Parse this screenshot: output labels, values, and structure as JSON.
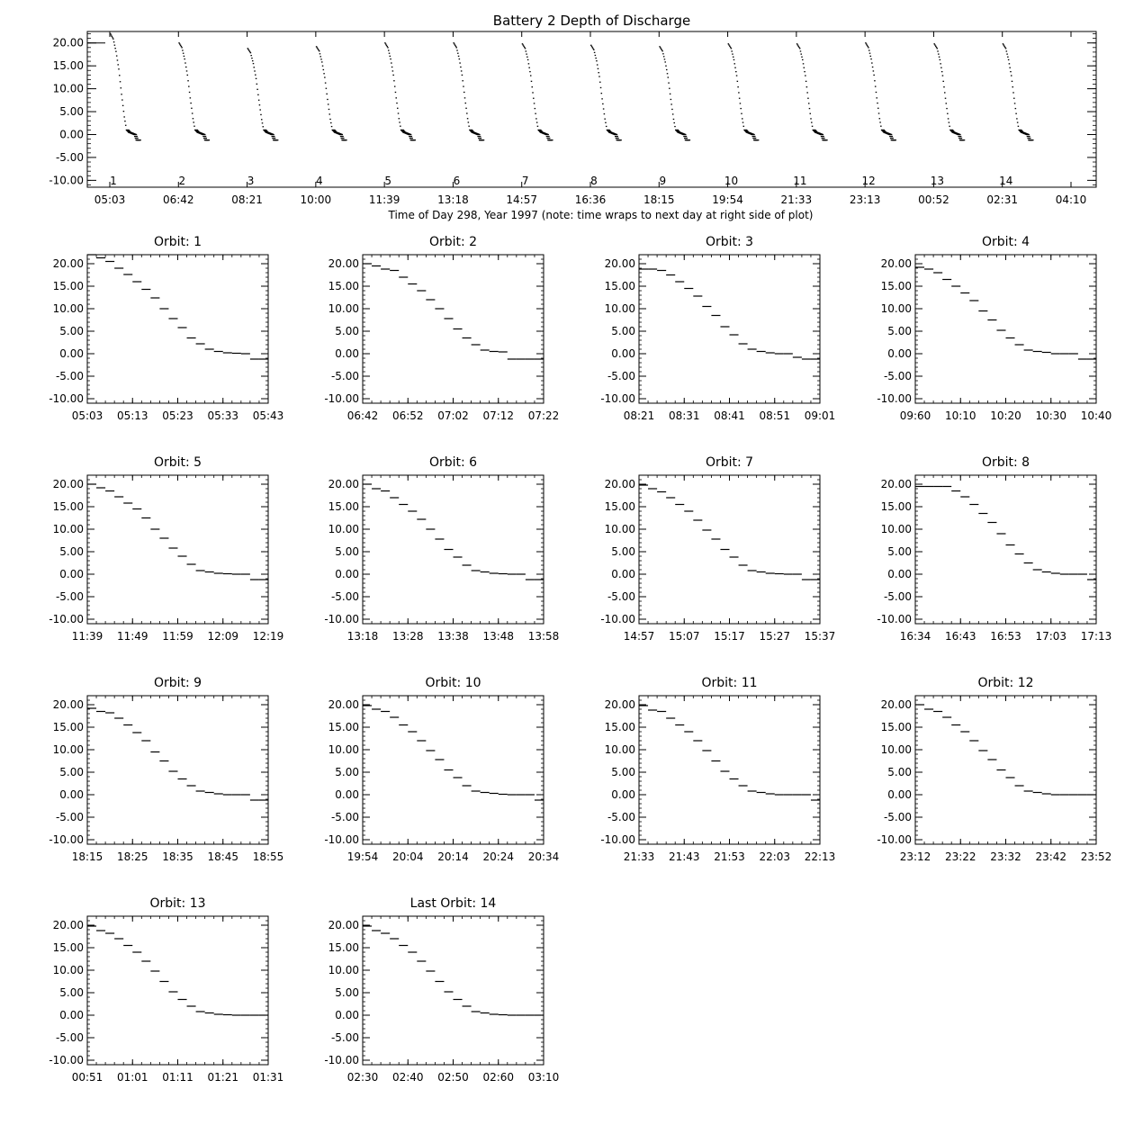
{
  "chart_data": [
    {
      "type": "scatter",
      "title": "Battery 2 Depth of Discharge",
      "xlabel": "Time of Day 298, Year 1997 (note: time wraps to next day at right side of plot)",
      "ylabel": "",
      "x_tick_labels": [
        "05:03",
        "06:42",
        "08:21",
        "10:00",
        "11:39",
        "13:18",
        "14:57",
        "16:36",
        "18:15",
        "19:54",
        "21:33",
        "23:13",
        "00:52",
        "02:31",
        "04:10"
      ],
      "y_ticks": [
        20.0,
        15.0,
        10.0,
        5.0,
        0.0,
        -5.0,
        -10.0
      ],
      "y_tick_labels": [
        "20.00",
        "15.00",
        "10.00",
        "5.00",
        "0.00",
        "-5.00",
        "-10.00"
      ],
      "ylim": [
        -11.5,
        22.5
      ],
      "orbit_markers": [
        "1",
        "2",
        "3",
        "4",
        "5",
        "6",
        "7",
        "8",
        "9",
        "10",
        "11",
        "12",
        "13",
        "14"
      ],
      "orbit_start_values": [
        22.0,
        20.0,
        18.8,
        19.2,
        20.0,
        20.0,
        19.8,
        19.5,
        19.2,
        19.8,
        19.8,
        20.0,
        19.8,
        19.8
      ],
      "series": [
        {
          "values_per_orbit_minutes": [
            0,
            40
          ],
          "profile": [
            [
              0,
              20.0
            ],
            [
              4,
              19.0
            ],
            [
              8,
              16.5
            ],
            [
              12,
              13.0
            ],
            [
              16,
              8.0
            ],
            [
              20,
              3.5
            ],
            [
              23,
              1.0
            ],
            [
              26,
              0.5
            ],
            [
              34,
              0.0
            ],
            [
              37,
              -1.2
            ],
            [
              40,
              -1.2
            ]
          ]
        }
      ]
    },
    {
      "type": "scatter",
      "title": "Orbit: 1",
      "x_tick_labels": [
        "05:03",
        "05:13",
        "05:23",
        "05:33",
        "05:43"
      ],
      "y_tick_labels": [
        "20.00",
        "15.00",
        "10.00",
        "5.00",
        "0.00",
        "-5.00",
        "-10.00"
      ],
      "ylim": [
        -11,
        22
      ],
      "x": [
        0,
        2,
        4,
        6,
        8,
        10,
        12,
        14,
        16,
        18,
        20,
        22,
        24,
        26,
        28,
        30,
        32,
        34,
        36,
        38,
        40
      ],
      "y": [
        22.0,
        21.3,
        20.5,
        19.0,
        17.6,
        16.0,
        14.3,
        12.4,
        10.0,
        7.8,
        5.8,
        3.5,
        2.2,
        1.0,
        0.5,
        0.2,
        0.1,
        0.0,
        -1.2,
        -1.2,
        -1.2
      ]
    },
    {
      "type": "scatter",
      "title": "Orbit: 2",
      "x_tick_labels": [
        "06:42",
        "06:52",
        "07:02",
        "07:12",
        "07:22"
      ],
      "y_tick_labels": [
        "20.00",
        "15.00",
        "10.00",
        "5.00",
        "0.00",
        "-5.00",
        "-10.00"
      ],
      "ylim": [
        -11,
        22
      ],
      "x": [
        0,
        2,
        4,
        6,
        8,
        10,
        12,
        14,
        16,
        18,
        20,
        22,
        24,
        26,
        28,
        30,
        32,
        34,
        36,
        38,
        40
      ],
      "y": [
        20.0,
        19.5,
        18.8,
        18.5,
        17.0,
        15.5,
        14.0,
        12.0,
        10.0,
        7.8,
        5.5,
        3.5,
        2.0,
        0.8,
        0.5,
        0.4,
        -1.2,
        -1.2,
        -1.2,
        -1.2,
        -1.2
      ]
    },
    {
      "type": "scatter",
      "title": "Orbit: 3",
      "x_tick_labels": [
        "08:21",
        "08:31",
        "08:41",
        "08:51",
        "09:01"
      ],
      "y_tick_labels": [
        "20.00",
        "15.00",
        "10.00",
        "5.00",
        "0.00",
        "-5.00",
        "-10.00"
      ],
      "ylim": [
        -11,
        22
      ],
      "x": [
        0,
        2,
        4,
        6,
        8,
        10,
        12,
        14,
        16,
        18,
        20,
        22,
        24,
        26,
        28,
        30,
        32,
        34,
        36,
        38,
        40
      ],
      "y": [
        18.8,
        18.8,
        18.5,
        17.5,
        16.0,
        14.5,
        12.8,
        10.5,
        8.5,
        6.0,
        4.2,
        2.2,
        1.0,
        0.5,
        0.2,
        0.0,
        0.0,
        -0.8,
        -1.2,
        -1.2,
        -1.2
      ]
    },
    {
      "type": "scatter",
      "title": "Orbit: 4",
      "x_tick_labels": [
        "09:60",
        "10:10",
        "10:20",
        "10:30",
        "10:40"
      ],
      "y_tick_labels": [
        "20.00",
        "15.00",
        "10.00",
        "5.00",
        "0.00",
        "-5.00",
        "-10.00"
      ],
      "ylim": [
        -11,
        22
      ],
      "x": [
        0,
        2,
        4,
        6,
        8,
        10,
        12,
        14,
        16,
        18,
        20,
        22,
        24,
        26,
        28,
        30,
        32,
        34,
        36,
        38,
        40
      ],
      "y": [
        19.2,
        18.8,
        18.0,
        16.5,
        15.0,
        13.5,
        11.8,
        9.5,
        7.5,
        5.2,
        3.5,
        2.0,
        0.8,
        0.5,
        0.3,
        0.0,
        0.0,
        0.0,
        -1.2,
        -1.2,
        -1.2
      ]
    },
    {
      "type": "scatter",
      "title": "Orbit: 5",
      "x_tick_labels": [
        "11:39",
        "11:49",
        "11:59",
        "12:09",
        "12:19"
      ],
      "y_tick_labels": [
        "20.00",
        "15.00",
        "10.00",
        "5.00",
        "0.00",
        "-5.00",
        "-10.00"
      ],
      "ylim": [
        -11,
        22
      ],
      "x": [
        0,
        2,
        4,
        6,
        8,
        10,
        12,
        14,
        16,
        18,
        20,
        22,
        24,
        26,
        28,
        30,
        32,
        34,
        36,
        38,
        40
      ],
      "y": [
        20.0,
        19.2,
        18.5,
        17.2,
        15.8,
        14.5,
        12.5,
        10.0,
        8.0,
        5.8,
        4.0,
        2.2,
        0.8,
        0.5,
        0.2,
        0.1,
        0.0,
        0.0,
        -1.2,
        -1.2,
        -1.2
      ]
    },
    {
      "type": "scatter",
      "title": "Orbit: 6",
      "x_tick_labels": [
        "13:18",
        "13:28",
        "13:38",
        "13:48",
        "13:58"
      ],
      "y_tick_labels": [
        "20.00",
        "15.00",
        "10.00",
        "5.00",
        "0.00",
        "-5.00",
        "-10.00"
      ],
      "ylim": [
        -11,
        22
      ],
      "x": [
        0,
        2,
        4,
        6,
        8,
        10,
        12,
        14,
        16,
        18,
        20,
        22,
        24,
        26,
        28,
        30,
        32,
        34,
        36,
        38,
        40
      ],
      "y": [
        20.0,
        19.0,
        18.5,
        17.0,
        15.5,
        14.0,
        12.2,
        10.0,
        7.8,
        5.5,
        3.8,
        2.0,
        0.8,
        0.5,
        0.2,
        0.1,
        0.0,
        0.0,
        -1.2,
        -1.2,
        -1.2
      ]
    },
    {
      "type": "scatter",
      "title": "Orbit: 7",
      "x_tick_labels": [
        "14:57",
        "15:07",
        "15:17",
        "15:27",
        "15:37"
      ],
      "y_tick_labels": [
        "20.00",
        "15.00",
        "10.00",
        "5.00",
        "0.00",
        "-5.00",
        "-10.00"
      ],
      "ylim": [
        -11,
        22
      ],
      "x": [
        0,
        2,
        4,
        6,
        8,
        10,
        12,
        14,
        16,
        18,
        20,
        22,
        24,
        26,
        28,
        30,
        32,
        34,
        36,
        38,
        40
      ],
      "y": [
        19.8,
        19.0,
        18.3,
        17.0,
        15.5,
        14.0,
        12.0,
        9.8,
        7.8,
        5.5,
        3.8,
        2.0,
        0.8,
        0.5,
        0.2,
        0.1,
        0.0,
        0.0,
        -1.2,
        -1.2,
        -1.2
      ]
    },
    {
      "type": "scatter",
      "title": "Orbit: 8",
      "x_tick_labels": [
        "16:34",
        "16:43",
        "16:53",
        "17:03",
        "17:13"
      ],
      "y_tick_labels": [
        "20.00",
        "15.00",
        "10.00",
        "5.00",
        "0.00",
        "-5.00",
        "-10.00"
      ],
      "ylim": [
        -11,
        22
      ],
      "x": [
        0,
        2,
        4,
        6,
        8,
        10,
        12,
        14,
        16,
        18,
        20,
        22,
        24,
        26,
        28,
        30,
        32,
        34,
        36,
        38,
        40
      ],
      "y": [
        19.5,
        19.5,
        19.5,
        19.5,
        18.5,
        17.2,
        15.5,
        13.5,
        11.5,
        9.0,
        6.5,
        4.5,
        2.5,
        1.0,
        0.5,
        0.2,
        0.0,
        0.0,
        0.0,
        -1.2,
        -1.2
      ]
    },
    {
      "type": "scatter",
      "title": "Orbit: 9",
      "x_tick_labels": [
        "18:15",
        "18:25",
        "18:35",
        "18:45",
        "18:55"
      ],
      "y_tick_labels": [
        "20.00",
        "15.00",
        "10.00",
        "5.00",
        "0.00",
        "-5.00",
        "-10.00"
      ],
      "ylim": [
        -11,
        22
      ],
      "x": [
        0,
        2,
        4,
        6,
        8,
        10,
        12,
        14,
        16,
        18,
        20,
        22,
        24,
        26,
        28,
        30,
        32,
        34,
        36,
        38,
        40
      ],
      "y": [
        19.2,
        18.5,
        18.2,
        17.0,
        15.5,
        13.8,
        12.0,
        9.5,
        7.5,
        5.2,
        3.5,
        2.0,
        0.8,
        0.5,
        0.2,
        0.0,
        0.0,
        0.0,
        -1.2,
        -1.2,
        -1.2
      ]
    },
    {
      "type": "scatter",
      "title": "Orbit: 10",
      "x_tick_labels": [
        "19:54",
        "20:04",
        "20:14",
        "20:24",
        "20:34"
      ],
      "y_tick_labels": [
        "20.00",
        "15.00",
        "10.00",
        "5.00",
        "0.00",
        "-5.00",
        "-10.00"
      ],
      "ylim": [
        -11,
        22
      ],
      "x": [
        0,
        2,
        4,
        6,
        8,
        10,
        12,
        14,
        16,
        18,
        20,
        22,
        24,
        26,
        28,
        30,
        32,
        34,
        36,
        38,
        40
      ],
      "y": [
        19.8,
        19.0,
        18.5,
        17.2,
        15.5,
        14.0,
        12.0,
        9.8,
        7.8,
        5.5,
        3.8,
        2.0,
        0.8,
        0.5,
        0.3,
        0.1,
        0.0,
        0.0,
        0.0,
        -1.2,
        -1.2
      ]
    },
    {
      "type": "scatter",
      "title": "Orbit: 11",
      "x_tick_labels": [
        "21:33",
        "21:43",
        "21:53",
        "22:03",
        "22:13"
      ],
      "y_tick_labels": [
        "20.00",
        "15.00",
        "10.00",
        "5.00",
        "0.00",
        "-5.00",
        "-10.00"
      ],
      "ylim": [
        -11,
        22
      ],
      "x": [
        0,
        2,
        4,
        6,
        8,
        10,
        12,
        14,
        16,
        18,
        20,
        22,
        24,
        26,
        28,
        30,
        32,
        34,
        36,
        38,
        40
      ],
      "y": [
        19.8,
        18.8,
        18.5,
        17.0,
        15.5,
        14.0,
        12.0,
        9.8,
        7.5,
        5.2,
        3.5,
        2.0,
        0.8,
        0.5,
        0.2,
        0.0,
        0.0,
        0.0,
        0.0,
        -1.2,
        -1.2
      ]
    },
    {
      "type": "scatter",
      "title": "Orbit: 12",
      "x_tick_labels": [
        "23:12",
        "23:22",
        "23:32",
        "23:42",
        "23:52"
      ],
      "y_tick_labels": [
        "20.00",
        "15.00",
        "10.00",
        "5.00",
        "0.00",
        "-5.00",
        "-10.00"
      ],
      "ylim": [
        -11,
        22
      ],
      "x": [
        0,
        2,
        4,
        6,
        8,
        10,
        12,
        14,
        16,
        18,
        20,
        22,
        24,
        26,
        28,
        30,
        32,
        34,
        36,
        38,
        40
      ],
      "y": [
        20.0,
        19.0,
        18.5,
        17.2,
        15.5,
        14.0,
        12.0,
        9.8,
        7.8,
        5.5,
        3.8,
        2.0,
        0.8,
        0.5,
        0.2,
        0.0,
        0.0,
        0.0,
        0.0,
        0.0,
        -1.2
      ]
    },
    {
      "type": "scatter",
      "title": "Orbit: 13",
      "x_tick_labels": [
        "00:51",
        "01:01",
        "01:11",
        "01:21",
        "01:31"
      ],
      "y_tick_labels": [
        "20.00",
        "15.00",
        "10.00",
        "5.00",
        "0.00",
        "-5.00",
        "-10.00"
      ],
      "ylim": [
        -11,
        22
      ],
      "x": [
        0,
        2,
        4,
        6,
        8,
        10,
        12,
        14,
        16,
        18,
        20,
        22,
        24,
        26,
        28,
        30,
        32,
        34,
        36,
        38,
        40
      ],
      "y": [
        19.8,
        18.8,
        18.2,
        17.0,
        15.5,
        14.0,
        12.0,
        9.8,
        7.5,
        5.2,
        3.5,
        2.0,
        0.8,
        0.5,
        0.2,
        0.1,
        0.0,
        0.0,
        0.0,
        0.0,
        -1.2
      ]
    },
    {
      "type": "scatter",
      "title": "Last Orbit: 14",
      "x_tick_labels": [
        "02:30",
        "02:40",
        "02:50",
        "02:60",
        "03:10"
      ],
      "y_tick_labels": [
        "20.00",
        "15.00",
        "10.00",
        "5.00",
        "0.00",
        "-5.00",
        "-10.00"
      ],
      "ylim": [
        -11,
        22
      ],
      "x": [
        0,
        2,
        4,
        6,
        8,
        10,
        12,
        14,
        16,
        18,
        20,
        22,
        24,
        26,
        28,
        30,
        32,
        34,
        36,
        38,
        40
      ],
      "y": [
        19.8,
        18.8,
        18.2,
        17.0,
        15.5,
        14.0,
        12.0,
        9.8,
        7.5,
        5.2,
        3.5,
        2.0,
        0.8,
        0.5,
        0.2,
        0.1,
        0.0,
        0.0,
        0.0,
        0.0,
        -1.2
      ]
    }
  ]
}
